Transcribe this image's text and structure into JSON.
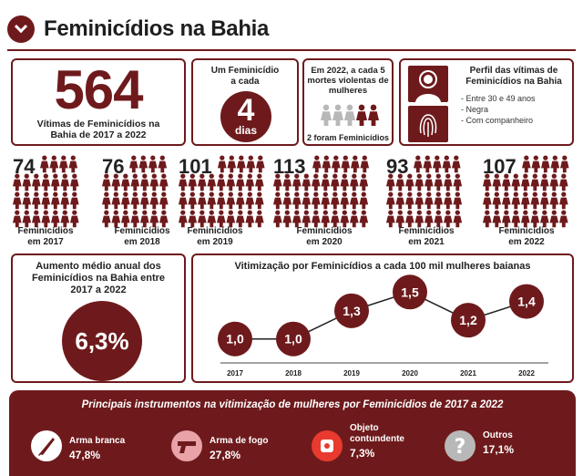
{
  "header": {
    "title": "Feminicídios na Bahia"
  },
  "colors": {
    "accent": "#6e1a1c",
    "light": "#b8b8b8",
    "pink": "#e8a2a8"
  },
  "total": {
    "value": "564",
    "caption_line1": "Vítimas de Feminicídios na",
    "caption_line2": "Bahia de 2017 a 2022"
  },
  "rate": {
    "caption_line1": "Um Feminicídio",
    "caption_line2": "a cada",
    "value": "4",
    "unit": "dias"
  },
  "ratio": {
    "caption_line1": "Em 2022, a cada 5",
    "caption_line2": "mortes violentas de",
    "caption_line3": "mulheres",
    "highlighted": 2,
    "total": 5,
    "footer": "2 foram Feminicídios"
  },
  "profile": {
    "title_line1": "Perfil das vítimas de",
    "title_line2": "Feminicídios na Bahia",
    "items": [
      "- Entre 30 e 49 anos",
      "- Negra",
      "- Com companheiro"
    ]
  },
  "yearly": [
    {
      "count": "74",
      "label_line1": "Feminicídios",
      "label_line2": "em 2017"
    },
    {
      "count": "76",
      "label_line1": "Feminicídios",
      "label_line2": "em 2018"
    },
    {
      "count": "101",
      "label_line1": "Feminicídios",
      "label_line2": "em 2019"
    },
    {
      "count": "113",
      "label_line1": "Feminicídios",
      "label_line2": "em 2020"
    },
    {
      "count": "93",
      "label_line1": "Feminicídios",
      "label_line2": "em 2021"
    },
    {
      "count": "107",
      "label_line1": "Feminicídios",
      "label_line2": "em 2022"
    }
  ],
  "growth": {
    "caption_line1": "Aumento médio anual dos",
    "caption_line2": "Feminicídios na Bahia entre",
    "caption_line3": "2017 a 2022",
    "value": "6,3%"
  },
  "chart_data": {
    "type": "line",
    "title": "Vitimização por Feminicídios a cada 100 mil mulheres baianas",
    "x": [
      "2017",
      "2018",
      "2019",
      "2020",
      "2021",
      "2022"
    ],
    "values": [
      1.0,
      1.0,
      1.3,
      1.5,
      1.2,
      1.4
    ],
    "labels": [
      "1,0",
      "1,0",
      "1,3",
      "1,5",
      "1,2",
      "1,4"
    ],
    "ylim": [
      0.9,
      1.6
    ],
    "grid": false
  },
  "instruments": {
    "title": "Principais instrumentos na vitimização de mulheres por Feminicídios de 2017 a 2022",
    "items": [
      {
        "name_line1": "Arma branca",
        "name_line2": "",
        "percent": "47,8%",
        "icon": "knife-icon",
        "icon_color": "#ffffff"
      },
      {
        "name_line1": "Arma de fogo",
        "name_line2": "",
        "percent": "27,8%",
        "icon": "gun-icon",
        "icon_color": "#e8a2a8"
      },
      {
        "name_line1": "Objeto",
        "name_line2": "contundente",
        "percent": "7,3%",
        "icon": "blunt-object-icon",
        "icon_color": "#e83a2e"
      },
      {
        "name_line1": "Outros",
        "name_line2": "",
        "percent": "17,1%",
        "icon": "question-icon",
        "icon_color": "#b8b8b8"
      }
    ]
  }
}
